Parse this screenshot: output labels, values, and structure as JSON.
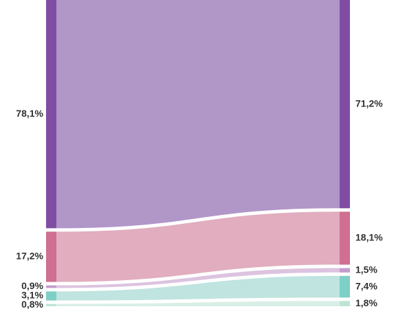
{
  "chart_data": {
    "type": "sankey",
    "unit": "%",
    "columns": [
      "left",
      "right"
    ],
    "left": [
      {
        "label": "78,1%",
        "value": 78.1,
        "color": "#7f4ea3",
        "flow_color": "#b196c8"
      },
      {
        "label": "17,2%",
        "value": 17.2,
        "color": "#cf6f91",
        "flow_color": "#e1adbf"
      },
      {
        "label": "0,9%",
        "value": 0.9,
        "color": "#c39ccc",
        "flow_color": "#dcc3e0"
      },
      {
        "label": "3,1%",
        "value": 3.1,
        "color": "#7ecfc6",
        "flow_color": "#c0e4df"
      },
      {
        "label": "0,8%",
        "value": 0.8,
        "color": "#bde5d4",
        "flow_color": "#d9efe6"
      }
    ],
    "right": [
      {
        "label": "71,2%",
        "value": 71.2
      },
      {
        "label": "18,1%",
        "value": 18.1
      },
      {
        "label": "1,5%",
        "value": 1.5
      },
      {
        "label": "7,4%",
        "value": 7.4
      },
      {
        "label": "1,8%",
        "value": 1.8
      }
    ]
  }
}
